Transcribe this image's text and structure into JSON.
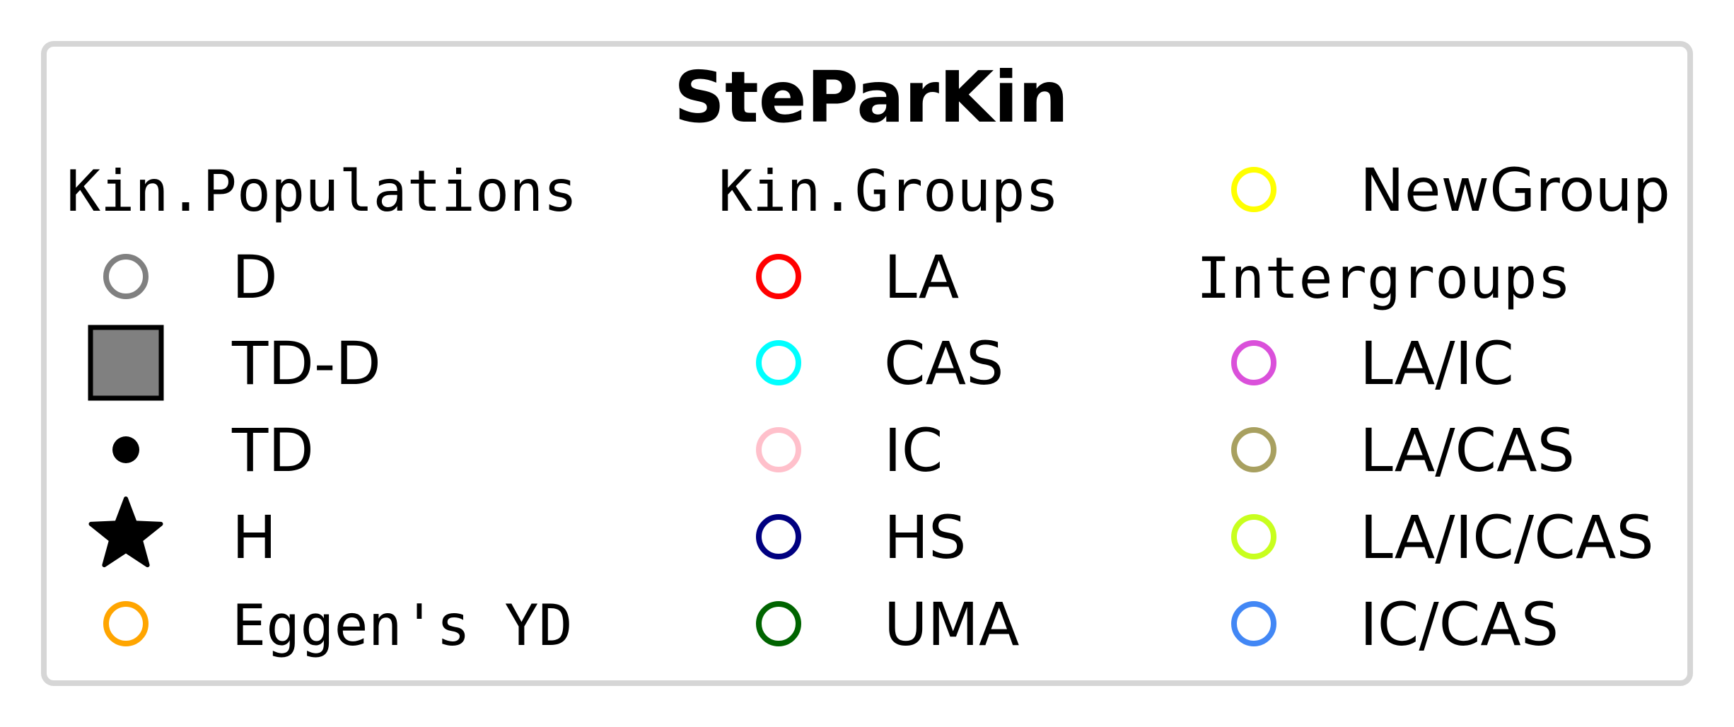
{
  "chart_data": {
    "type": "legend",
    "title": "SteParKin",
    "columns": [
      {
        "header": "Kin.Populations",
        "entries": [
          {
            "label": "D",
            "marker": "open-circle",
            "color": "#808080"
          },
          {
            "label": "TD-D",
            "marker": "filled-square",
            "color": "#808080",
            "edge_color": "#000000"
          },
          {
            "label": "TD",
            "marker": "filled-dot",
            "color": "#000000"
          },
          {
            "label": "H",
            "marker": "filled-star",
            "color": "#000000"
          },
          {
            "label": "Eggen's YD",
            "marker": "open-circle",
            "color": "#ffa500"
          }
        ]
      },
      {
        "header": "Kin.Groups",
        "entries": [
          {
            "label": "LA",
            "marker": "open-circle",
            "color": "#ff0000"
          },
          {
            "label": "CAS",
            "marker": "open-circle",
            "color": "#00ffff"
          },
          {
            "label": "IC",
            "marker": "open-circle",
            "color": "#ffc0cb"
          },
          {
            "label": "HS",
            "marker": "open-circle",
            "color": "#000080"
          },
          {
            "label": "UMA",
            "marker": "open-circle",
            "color": "#006400"
          }
        ]
      },
      {
        "entries_top": [
          {
            "label": "NewGroup",
            "marker": "open-circle",
            "color": "#ffff00"
          }
        ],
        "header": "Intergroups",
        "entries": [
          {
            "label": "LA/IC",
            "marker": "open-circle",
            "color": "#da50da"
          },
          {
            "label": "LA/CAS",
            "marker": "open-circle",
            "color": "#a8a060"
          },
          {
            "label": "LA/IC/CAS",
            "marker": "open-circle",
            "color": "#c8ff1e"
          },
          {
            "label": "IC/CAS",
            "marker": "open-circle",
            "color": "#4287f5"
          }
        ]
      }
    ],
    "frame_color": "#d6d6d6"
  }
}
